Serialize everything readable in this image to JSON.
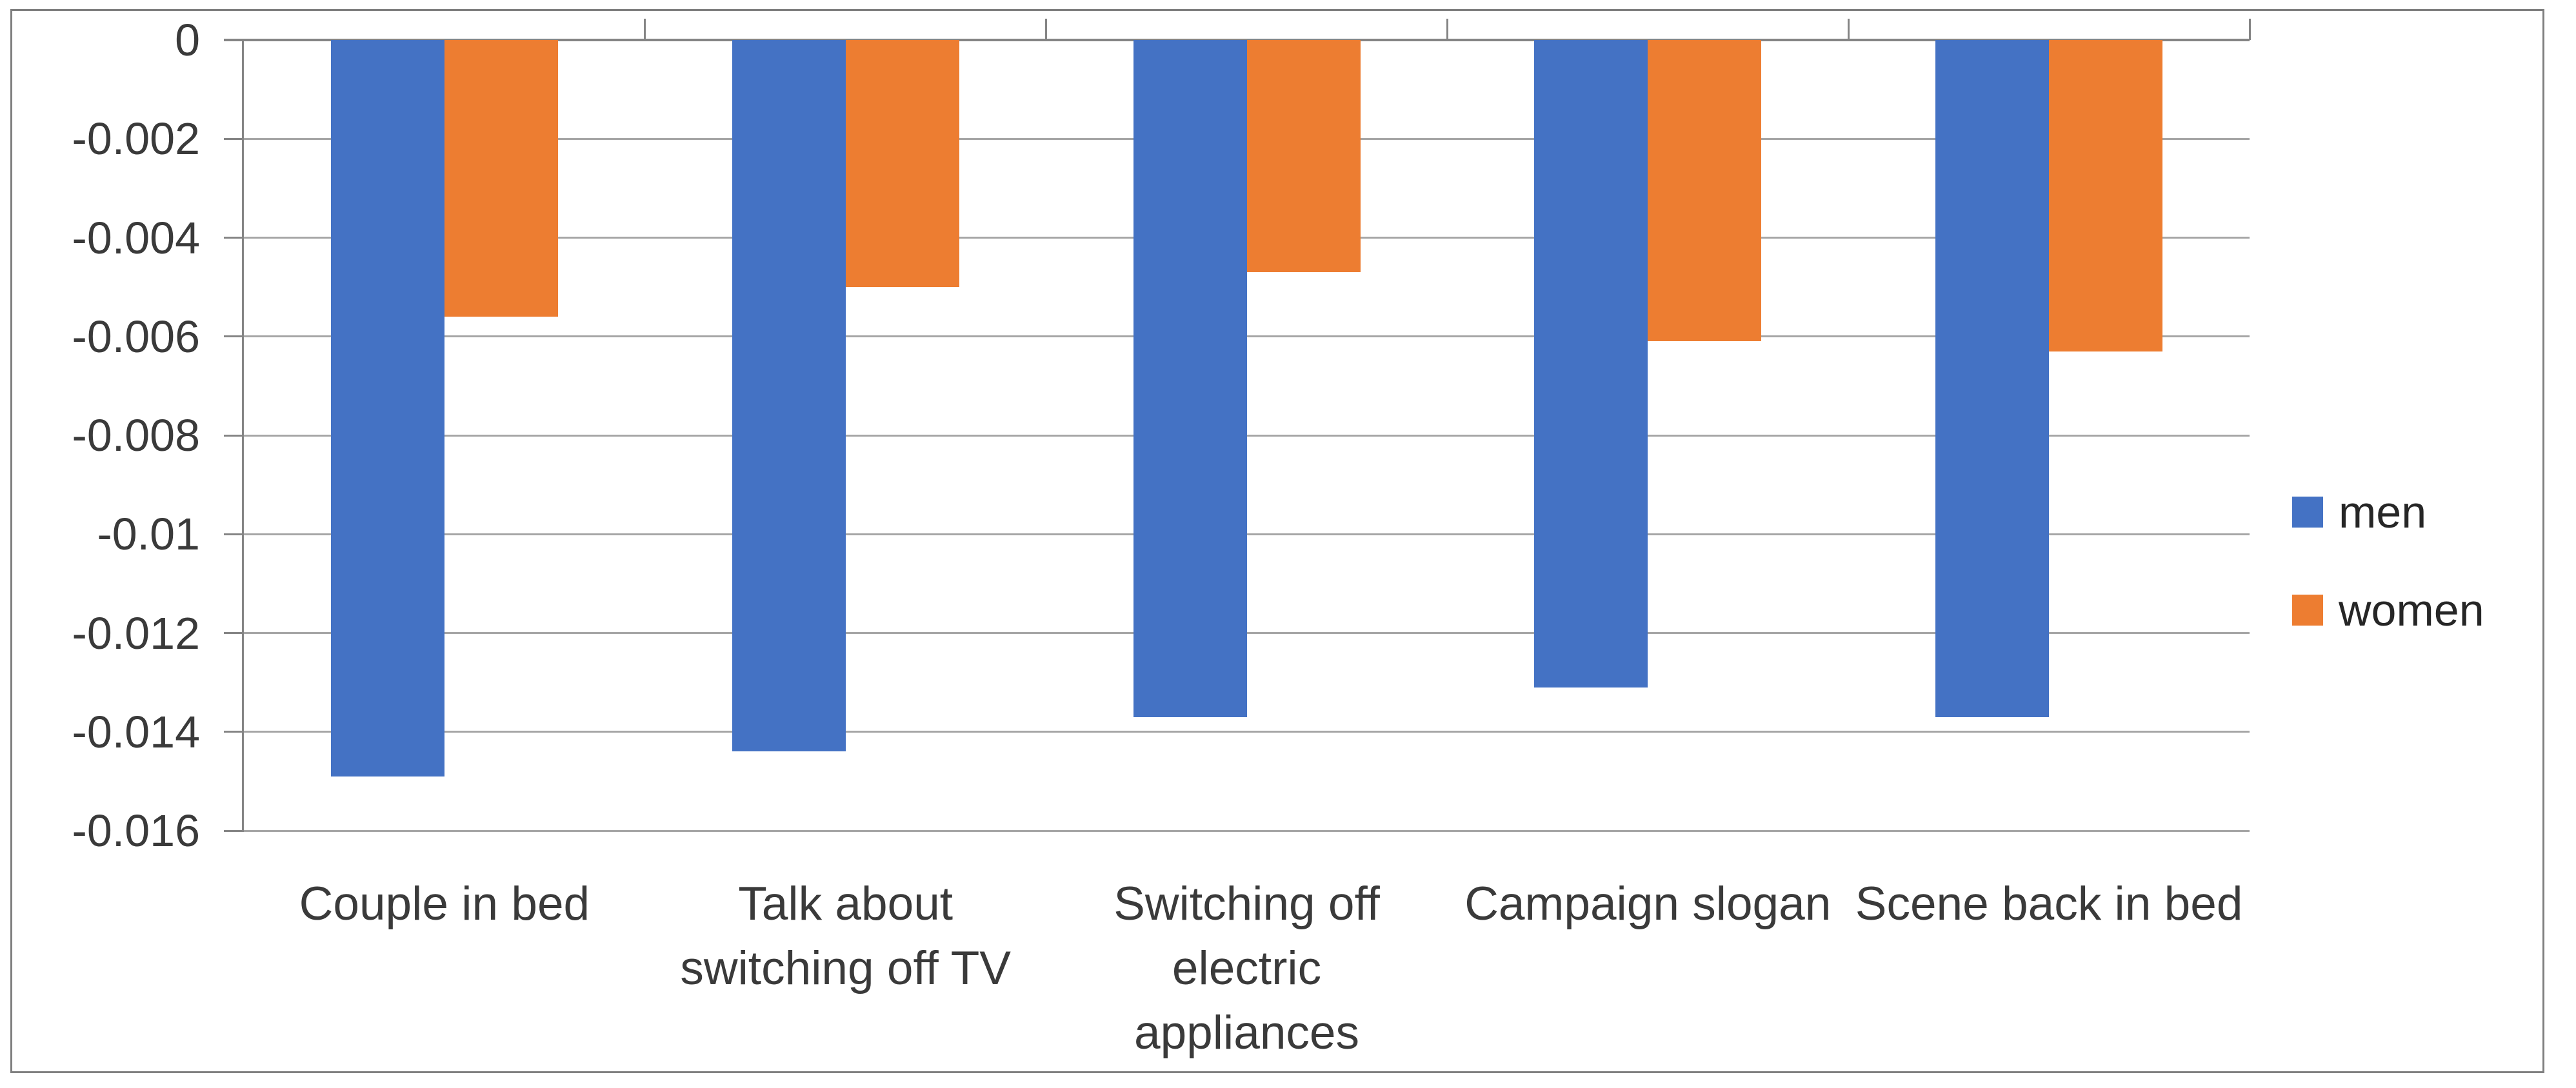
{
  "chart_data": {
    "type": "bar",
    "title": "",
    "xlabel": "",
    "ylabel": "",
    "categories": [
      "Couple in bed",
      "Talk about switching off TV",
      "Switching off electric appliances",
      "Campaign slogan",
      "Scene back in bed"
    ],
    "category_wrap_lines": [
      [
        "Couple in bed"
      ],
      [
        "Talk about",
        "switching off TV"
      ],
      [
        "Switching off",
        "electric",
        "appliances"
      ],
      [
        "Campaign slogan"
      ],
      [
        "Scene back in bed"
      ]
    ],
    "series": [
      {
        "name": "men",
        "color": "#4472C4",
        "values": [
          -0.0149,
          -0.0144,
          -0.0137,
          -0.0131,
          -0.0137
        ]
      },
      {
        "name": "women",
        "color": "#ED7D31",
        "values": [
          -0.0056,
          -0.005,
          -0.0047,
          -0.0061,
          -0.0063
        ]
      }
    ],
    "ylim": [
      -0.016,
      0
    ],
    "y_ticks": [
      "0",
      "-0.002",
      "-0.004",
      "-0.006",
      "-0.008",
      "-0.01",
      "-0.012",
      "-0.014",
      "-0.016"
    ],
    "y_tick_values": [
      0,
      -0.002,
      -0.004,
      -0.006,
      -0.008,
      -0.01,
      -0.012,
      -0.014,
      -0.016
    ],
    "grid": true,
    "legend_position": "right"
  },
  "legend": {
    "men": "men",
    "women": "women"
  },
  "colors": {
    "men": "#4472C4",
    "women": "#ED7D31",
    "gridline": "#a6a6a6",
    "axis": "#858585",
    "text": "#3a3a3a",
    "legend_text": "#262626",
    "frame_border": "#7f7f7f",
    "background": "#ffffff"
  }
}
